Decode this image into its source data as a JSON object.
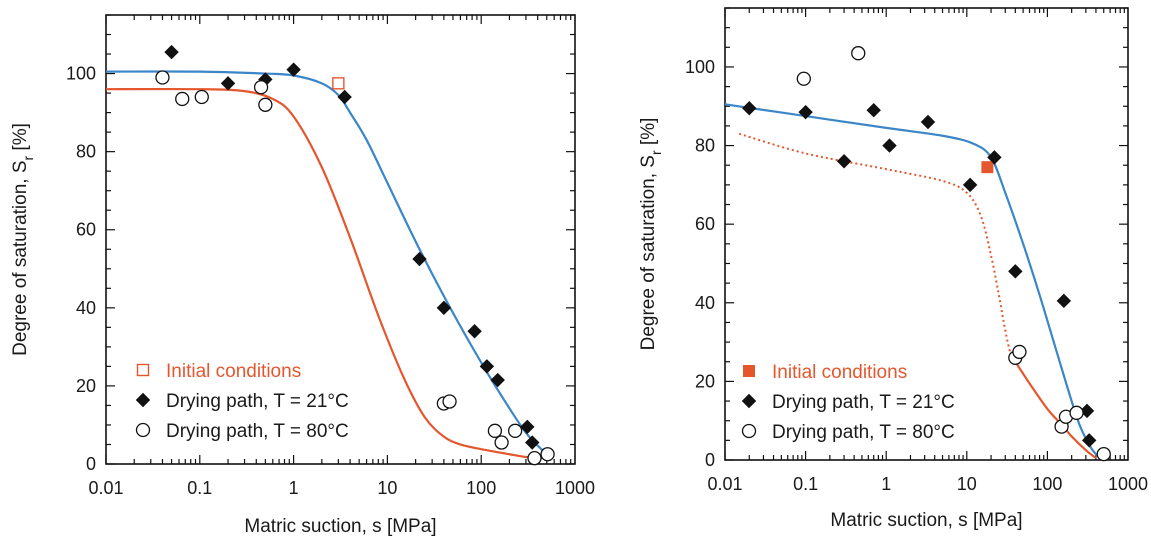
{
  "colors": {
    "orange": "#e4572e",
    "blue": "#3a86c8",
    "black": "#111111"
  },
  "chart_data": [
    {
      "type": "scatter",
      "title": "",
      "xlabel": "Matric suction, s [MPa]",
      "ylabel": "Degree of saturation, S",
      "ylabel_sub": "r",
      "ylabel_unit": " [%]",
      "xscale": "log",
      "xlim": [
        0.01,
        1000
      ],
      "ylim": [
        0,
        115
      ],
      "xticks": [
        0.01,
        0.1,
        1,
        10,
        100,
        1000
      ],
      "xtick_labels": [
        "0.01",
        "0.1",
        "1",
        "10",
        "100",
        "1000"
      ],
      "yticks": [
        0,
        20,
        40,
        60,
        80,
        100
      ],
      "ytick_labels": [
        "0",
        "20",
        "40",
        "60",
        "80",
        "100"
      ],
      "legend_position": "bottom-left",
      "series": [
        {
          "name": "Initial conditions",
          "marker": "open-square",
          "color": "#e4572e",
          "x": [
            3
          ],
          "y": [
            97.5
          ]
        },
        {
          "name": "Drying path, T = 21°C",
          "marker": "filled-diamond",
          "color": "#111111",
          "x": [
            0.05,
            0.2,
            0.5,
            1,
            3.5,
            22,
            40,
            85,
            115,
            150,
            310,
            350
          ],
          "y": [
            105.5,
            97.5,
            98.5,
            101,
            94,
            52.5,
            40,
            34,
            25,
            21.5,
            9.5,
            5.5
          ]
        },
        {
          "name": "Drying path, T = 80°C",
          "marker": "open-circle",
          "color": "#111111",
          "x": [
            0.04,
            0.065,
            0.105,
            0.45,
            0.5,
            40,
            46,
            140,
            165,
            230,
            370,
            510
          ],
          "y": [
            99,
            93.5,
            94,
            96.5,
            92,
            15.5,
            16,
            8.5,
            5.5,
            8.5,
            1.5,
            2.5
          ]
        }
      ],
      "fit_curves": [
        {
          "color": "#3a86c8",
          "style": "solid",
          "x": [
            0.01,
            0.1,
            0.5,
            1,
            2,
            3,
            4,
            6,
            10,
            20,
            40,
            80,
            150,
            300,
            500
          ],
          "y": [
            100.5,
            100.5,
            100,
            99.5,
            97.5,
            94.5,
            90,
            83,
            72,
            57,
            43,
            30,
            19,
            8,
            2.5
          ]
        },
        {
          "color": "#e4572e",
          "style": "solid",
          "x": [
            0.01,
            0.1,
            0.3,
            0.6,
            1,
            2,
            4,
            8,
            15,
            25,
            40,
            60,
            100,
            200,
            300,
            500
          ],
          "y": [
            96,
            96,
            95.5,
            93.5,
            89,
            76,
            58,
            38,
            22,
            12,
            7,
            5,
            3.8,
            2.5,
            1.8,
            1.5
          ]
        }
      ]
    },
    {
      "type": "scatter",
      "title": "",
      "xlabel": "Matric suction, s [MPa]",
      "ylabel": "Degree of saturation, S",
      "ylabel_sub": "r",
      "ylabel_unit": " [%]",
      "xscale": "log",
      "xlim": [
        0.01,
        1000
      ],
      "ylim": [
        0,
        115
      ],
      "xticks": [
        0.01,
        0.1,
        1,
        10,
        100,
        1000
      ],
      "xtick_labels": [
        "0.01",
        "0.1",
        "1",
        "10",
        "100",
        "1000"
      ],
      "yticks": [
        0,
        20,
        40,
        60,
        80,
        100
      ],
      "ytick_labels": [
        "0",
        "20",
        "40",
        "60",
        "80",
        "100"
      ],
      "legend_position": "bottom-left",
      "series": [
        {
          "name": "Initial conditions",
          "marker": "filled-square",
          "color": "#e4572e",
          "x": [
            18
          ],
          "y": [
            74.5
          ]
        },
        {
          "name": "Drying path, T = 21°C",
          "marker": "filled-diamond",
          "color": "#111111",
          "x": [
            0.02,
            0.1,
            0.3,
            0.7,
            1.1,
            3.3,
            11,
            22,
            40,
            160,
            310,
            330
          ],
          "y": [
            89.5,
            88.5,
            76,
            89,
            80,
            86,
            70,
            77,
            48,
            40.5,
            12.5,
            5
          ]
        },
        {
          "name": "Drying path, T = 80°C",
          "marker": "open-circle",
          "color": "#111111",
          "x": [
            0.095,
            0.45,
            40,
            45,
            150,
            170,
            230,
            500
          ],
          "y": [
            97,
            103.5,
            26,
            27.5,
            8.5,
            11,
            12,
            1.5
          ]
        }
      ],
      "fit_curves": [
        {
          "color": "#3a86c8",
          "style": "solid",
          "x": [
            0.01,
            0.1,
            1,
            5,
            12,
            20,
            30,
            50,
            80,
            120,
            180,
            250,
            350,
            450
          ],
          "y": [
            90.5,
            87.5,
            84.5,
            82.5,
            80.5,
            77,
            68,
            55,
            42,
            30,
            18,
            9,
            3,
            0.5
          ]
        },
        {
          "color": "#e4572e",
          "style": "dotted",
          "x": [
            0.015,
            0.1,
            1,
            5,
            10,
            15,
            20,
            25,
            30,
            35,
            40
          ],
          "y": [
            83,
            78,
            74,
            71,
            68,
            62,
            52,
            42,
            33,
            27,
            25
          ]
        },
        {
          "color": "#e4572e",
          "style": "solid",
          "x": [
            40,
            60,
            100,
            150,
            200,
            300,
            400
          ],
          "y": [
            25,
            19.5,
            13,
            9,
            6,
            2.5,
            0.5
          ]
        }
      ]
    }
  ]
}
